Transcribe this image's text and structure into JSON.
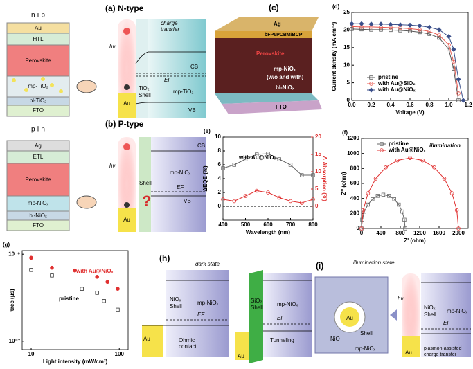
{
  "panels": {
    "a": {
      "title": "(a) N-type",
      "structure": "n-i-p",
      "layers": [
        "Au",
        "HTL",
        "Perovskite",
        "mp-TiO₂",
        "bl-TiO₂",
        "FTO"
      ],
      "energy": [
        "charge",
        "transfer",
        "CB",
        "EF",
        "TiO₂",
        "Shell",
        "mp-TiO₂",
        "VB",
        "Au",
        "hν"
      ]
    },
    "b": {
      "title": "(b) P-type",
      "structure": "p-i-n",
      "layers": [
        "Ag",
        "ETL",
        "Perovskite",
        "mp-NiOₓ",
        "bl-NiOₓ",
        "FTO"
      ],
      "energy": [
        "CB",
        "mp-NiOₓ",
        "Shell",
        "EF",
        "VB",
        "Au",
        "hν",
        "?"
      ]
    },
    "c": {
      "label": "(c)",
      "layers": [
        "Ag",
        "bFPI/PCBM/BCP",
        "Perovskite",
        "mp-NiOₓ",
        "(w/o and with)",
        "bl-NiOₓ",
        "FTO"
      ]
    },
    "h": {
      "label": "(h)",
      "state": "dark state",
      "left": [
        "NiOₓ",
        "Shell",
        "mp-NiOₓ",
        "EF",
        "Au",
        "Ohmic",
        "contact"
      ],
      "right": [
        "SiO₂",
        "Shell",
        "mp-NiOₓ",
        "EF",
        "Au",
        "Tunneling"
      ]
    },
    "i": {
      "label": "(i)",
      "state": "illumination state",
      "inset": [
        "Au",
        "NiO",
        "Shell",
        "mp-NiOₓ"
      ],
      "energy": [
        "hν",
        "NiOₓ",
        "Shell",
        "mp-NiOₓ",
        "EF",
        "Au",
        "plasmon-assisted",
        "charge transfer"
      ]
    }
  },
  "chart_data": [
    {
      "type": "line",
      "label": "(d)",
      "xlabel": "Voltage (V)",
      "ylabel": "Current density (mA cm⁻²)",
      "x": [
        0,
        0.1,
        0.2,
        0.3,
        0.4,
        0.5,
        0.6,
        0.7,
        0.8,
        0.9,
        1.0,
        1.05,
        1.1,
        1.15
      ],
      "xlim": [
        0,
        1.2
      ],
      "xticks": [
        {
          "value": 0,
          "label": "0.0"
        },
        {
          "value": 0.2,
          "label": "0.2"
        },
        {
          "value": 0.4,
          "label": "0.4"
        },
        {
          "value": 0.6,
          "label": "0.6"
        },
        {
          "value": 0.8,
          "label": "0.8"
        },
        {
          "value": 1,
          "label": "1.0"
        },
        {
          "value": 1.2,
          "label": "1.2"
        }
      ],
      "ylim": [
        0,
        25
      ],
      "yticks": [
        0,
        5,
        10,
        15,
        20,
        25
      ],
      "legend": "lower left",
      "series": [
        {
          "name": "pristine",
          "color": "#555555",
          "marker": "square",
          "values": [
            20.3,
            20.2,
            20.1,
            20.1,
            20,
            19.9,
            19.7,
            19.4,
            18.9,
            17.8,
            14.5,
            9,
            0,
            null
          ]
        },
        {
          "name": "with Au@SiO₂",
          "color": "#e8584f",
          "marker": "circle",
          "values": [
            21,
            20.9,
            20.9,
            20.8,
            20.7,
            20.6,
            20.4,
            20.1,
            19.6,
            18.6,
            15.8,
            11,
            2,
            null
          ]
        },
        {
          "name": "with Au@NiOₓ",
          "color": "#3b4f8a",
          "marker": "diamond",
          "values": [
            21.8,
            21.8,
            21.7,
            21.7,
            21.6,
            21.5,
            21.4,
            21.2,
            20.8,
            20.1,
            18.2,
            14.5,
            6,
            0
          ]
        }
      ]
    },
    {
      "type": "line",
      "label": "(e)",
      "xlabel": "Wavelength (nm)",
      "ylabel": "ΔEQE (%)",
      "y2label": "Δ Absorption (%)",
      "annotations": [
        {
          "text": "with Au@NiOₓ",
          "color": "#000000"
        }
      ],
      "x": [
        400,
        450,
        500,
        550,
        600,
        650,
        700,
        750,
        800
      ],
      "xlim": [
        400,
        800
      ],
      "xticks": [
        400,
        500,
        600,
        700,
        800
      ],
      "ylim": [
        -2,
        10
      ],
      "yticks": [
        0,
        2,
        4,
        6,
        8,
        10
      ],
      "y2lim": [
        -4,
        20
      ],
      "y2ticks": [
        0,
        5,
        10,
        15,
        20
      ],
      "zero_line": true,
      "series": [
        {
          "color": "#666666",
          "marker": "square",
          "values": [
            5.5,
            6,
            6.8,
            7.5,
            7.6,
            6.8,
            6,
            4.5,
            4.5
          ]
        },
        {
          "color": "#e03030",
          "marker": "circle",
          "axis": "y2",
          "values": [
            2,
            1.5,
            3,
            4.5,
            4,
            2.5,
            1.5,
            1,
            2
          ]
        }
      ]
    },
    {
      "type": "line",
      "label": "(f)",
      "xlabel": "Z' (ohm)",
      "ylabel": "Z'' (ohm)",
      "annotations": [
        {
          "text": "illumination",
          "color": "#000000"
        }
      ],
      "xlim": [
        0,
        2200
      ],
      "xticks": [
        0,
        400,
        800,
        1200,
        1600,
        2000
      ],
      "ylim": [
        0,
        1200
      ],
      "yticks": [
        0,
        200,
        400,
        600,
        800,
        1000,
        1200
      ],
      "legend": "upper left",
      "series": [
        {
          "name": "pristine",
          "color": "#666666",
          "marker": "square",
          "x": [
            0,
            15,
            60,
            132,
            225,
            333,
            450,
            567,
            675,
            768,
            840,
            885,
            900
          ],
          "values": [
            0,
            117,
            225,
            318,
            390,
            435,
            450,
            435,
            390,
            318,
            225,
            117,
            0
          ]
        },
        {
          "name": "with Au@NiOₓ",
          "color": "#e03030",
          "marker": "circle",
          "x": [
            0,
            34,
            134,
            293,
            500,
            741,
            1000,
            1259,
            1500,
            1707,
            1866,
            1966,
            2000
          ],
          "values": [
            0,
            243,
            470,
            665,
            814,
            908,
            940,
            908,
            814,
            665,
            470,
            243,
            0
          ]
        }
      ]
    },
    {
      "type": "scatter",
      "label": "(g)",
      "xlabel": "Light intensity (mW/cm²)",
      "ylabel": "τrec (μs)",
      "xlog": true,
      "ylog": true,
      "annotations": [
        {
          "text": "with Au@NiOₓ",
          "color": "#e03030"
        },
        {
          "text": "pristine",
          "color": "#000000"
        }
      ],
      "xlim": [
        7.9,
        126
      ],
      "xticks": [
        10,
        100
      ],
      "ylim": [
        8e-08,
        1.1e-06
      ],
      "yticks": [
        {
          "value": 1e-07,
          "label": "10⁻⁷"
        },
        {
          "value": 1e-06,
          "label": "10⁻⁶"
        }
      ],
      "series": [
        {
          "color": "#e03030",
          "marker": "circle",
          "fill": "#e03030",
          "x": [
            10,
            17.2,
            31.3,
            56,
            73.5,
            96
          ],
          "values": [
            9.1e-07,
            7e-07,
            6.5e-07,
            5.5e-07,
            4.8e-07,
            4e-07
          ]
        },
        {
          "color": "#333333",
          "marker": "square",
          "fill": "#ffffff",
          "x": [
            10,
            17.2,
            37.6,
            56,
            67,
            96
          ],
          "values": [
            6.6e-07,
            5.7e-07,
            4e-07,
            3.6e-07,
            2.9e-07,
            2.3e-07
          ]
        }
      ]
    }
  ]
}
